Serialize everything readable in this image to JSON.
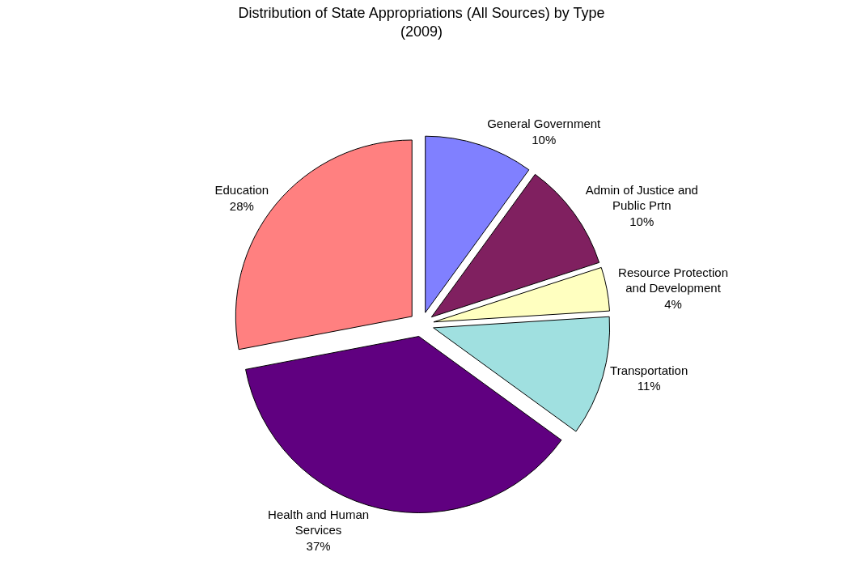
{
  "chart_data": {
    "type": "pie",
    "title": "Distribution of State Appropriations (All Sources) by Type",
    "subtitle": "(2009)",
    "categories": [
      "General Government",
      "Admin of Justice and Public Prtn",
      "Resource Protection and Development",
      "Transportation",
      "Health and Human Services",
      "Education"
    ],
    "values": [
      10,
      10,
      4,
      11,
      37,
      28
    ],
    "colors": [
      "#8080ff",
      "#802060",
      "#ffffc0",
      "#a0e0e0",
      "#600080",
      "#ff8080"
    ],
    "value_labels": [
      "10%",
      "10%",
      "4%",
      "11%",
      "37%",
      "28%"
    ],
    "legend": false
  }
}
